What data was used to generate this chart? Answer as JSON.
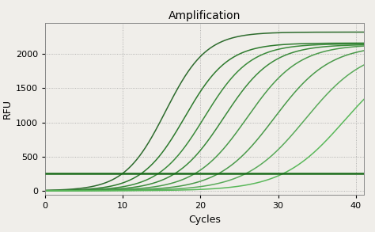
{
  "title": "Amplification",
  "xlabel": "Cycles",
  "ylabel": "RFU",
  "xlim": [
    0,
    41
  ],
  "ylim": [
    -60,
    2450
  ],
  "xticks": [
    0,
    10,
    20,
    30,
    40
  ],
  "yticks": [
    0,
    500,
    1000,
    1500,
    2000
  ],
  "background_color": "#f0eeea",
  "plot_bg_color": "#f0eeea",
  "grid_color": "#999999",
  "curves": [
    {
      "midpoint": 15.5,
      "ymax": 2320,
      "k": 0.38,
      "color": "#2d6b2d",
      "lw": 1.1
    },
    {
      "midpoint": 18.0,
      "ymax": 2160,
      "k": 0.36,
      "color": "#2d7a2d",
      "lw": 1.1
    },
    {
      "midpoint": 20.5,
      "ymax": 2150,
      "k": 0.34,
      "color": "#3a8a3a",
      "lw": 1.1
    },
    {
      "midpoint": 23.0,
      "ymax": 2140,
      "k": 0.32,
      "color": "#3a8a3a",
      "lw": 1.1
    },
    {
      "midpoint": 26.0,
      "ymax": 2140,
      "k": 0.3,
      "color": "#4a9a4a",
      "lw": 1.1
    },
    {
      "midpoint": 29.5,
      "ymax": 2130,
      "k": 0.28,
      "color": "#4a9a4a",
      "lw": 1.1
    },
    {
      "midpoint": 33.5,
      "ymax": 2100,
      "k": 0.26,
      "color": "#5aaa5a",
      "lw": 1.1
    },
    {
      "midpoint": 38.5,
      "ymax": 2050,
      "k": 0.25,
      "color": "#5ab85a",
      "lw": 1.1
    }
  ],
  "threshold_y": 255,
  "threshold_color": "#1a6b1a",
  "threshold_lw": 1.8,
  "title_fontsize": 10,
  "axis_label_fontsize": 9,
  "tick_fontsize": 8
}
